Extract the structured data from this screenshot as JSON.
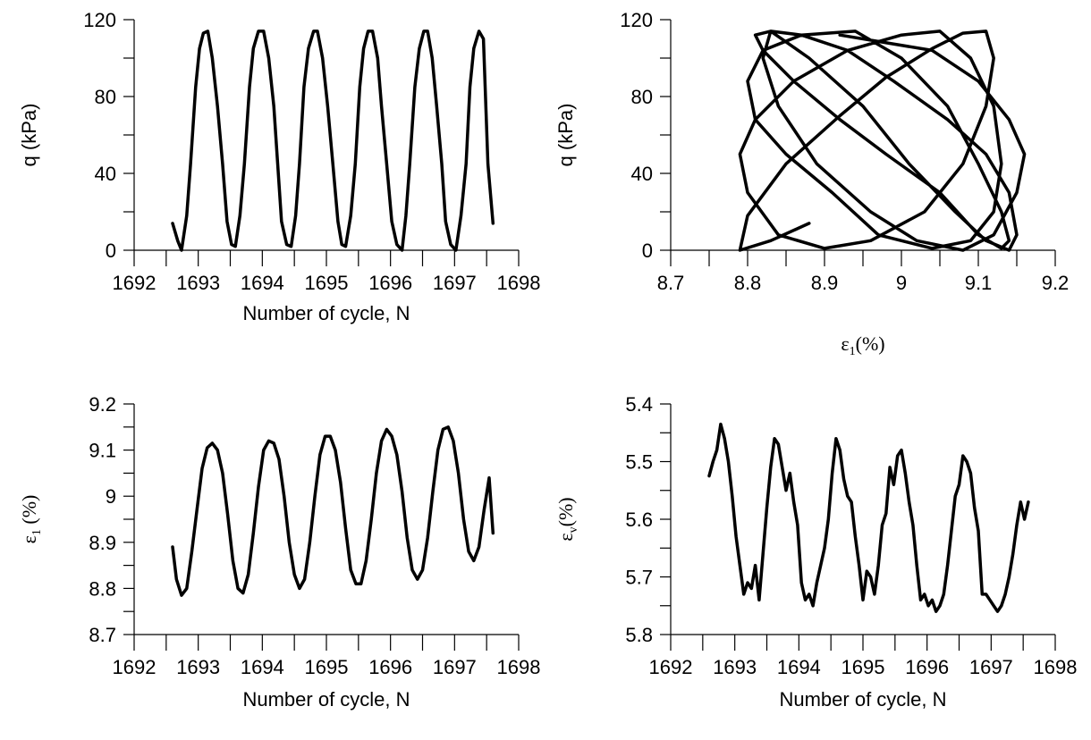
{
  "chart_data": [
    {
      "type": "line",
      "xlabel": "Number of cycle, N",
      "ylabel": "q (kPa)",
      "xlim": [
        1692,
        1698
      ],
      "ylim": [
        0,
        120
      ],
      "xticks": [
        "1692",
        "1693",
        "1694",
        "1695",
        "1696",
        "1697",
        "1698"
      ],
      "yticks": [
        "0",
        "40",
        "80",
        "120"
      ],
      "y_inverted": false,
      "series": [
        {
          "x": [
            1692.6,
            1692.68,
            1692.74,
            1692.82,
            1692.88,
            1692.96,
            1693.02,
            1693.08,
            1693.15,
            1693.22,
            1693.3,
            1693.38,
            1693.45,
            1693.52,
            1693.58,
            1693.65,
            1693.72,
            1693.8,
            1693.86,
            1693.94,
            1694.02,
            1694.1,
            1694.18,
            1694.24,
            1694.3,
            1694.38,
            1694.45,
            1694.52,
            1694.58,
            1694.65,
            1694.72,
            1694.8,
            1694.86,
            1694.94,
            1695.02,
            1695.1,
            1695.18,
            1695.24,
            1695.3,
            1695.38,
            1695.45,
            1695.52,
            1695.58,
            1695.65,
            1695.72,
            1695.8,
            1695.86,
            1695.94,
            1696.02,
            1696.1,
            1696.18,
            1696.24,
            1696.3,
            1696.38,
            1696.45,
            1696.52,
            1696.58,
            1696.65,
            1696.72,
            1696.8,
            1696.86,
            1696.94,
            1697.02,
            1697.1,
            1697.18,
            1697.24,
            1697.3,
            1697.38,
            1697.45,
            1697.52,
            1697.6
          ],
          "y": [
            14,
            5,
            0,
            18,
            45,
            85,
            105,
            113,
            114,
            100,
            75,
            45,
            15,
            3,
            2,
            18,
            45,
            85,
            105,
            114,
            114,
            100,
            75,
            45,
            15,
            3,
            2,
            18,
            45,
            85,
            105,
            114,
            114,
            100,
            75,
            45,
            15,
            3,
            2,
            18,
            45,
            85,
            105,
            114,
            114,
            100,
            75,
            45,
            15,
            3,
            0,
            18,
            45,
            85,
            105,
            114,
            114,
            100,
            75,
            45,
            15,
            3,
            0,
            18,
            45,
            85,
            105,
            114,
            110,
            45,
            14
          ]
        }
      ]
    },
    {
      "type": "line",
      "xlabel": "ε1(%)",
      "ylabel": "q (kPa)",
      "xlim": [
        8.7,
        9.2
      ],
      "ylim": [
        0,
        120
      ],
      "xticks": [
        "8.7",
        "8.8",
        "8.9",
        "9",
        "9.1",
        "9.2"
      ],
      "yticks": [
        "0",
        "40",
        "80",
        "120"
      ],
      "y_inverted": false,
      "series": [
        {
          "x": [
            8.88,
            8.83,
            8.79,
            8.8,
            8.85,
            8.92,
            8.98,
            9.04,
            9.08,
            9.11,
            9.12,
            9.11,
            9.08,
            9.03,
            8.96,
            8.9,
            8.84,
            8.8,
            8.79,
            8.81,
            8.86,
            8.93,
            9.0,
            9.05,
            9.09,
            9.12,
            9.13,
            9.12,
            9.09,
            9.04,
            8.97,
            8.91,
            8.85,
            8.81,
            8.8,
            8.82,
            8.87,
            8.94,
            9.0,
            9.06,
            9.1,
            9.13,
            9.14,
            9.13,
            9.1,
            9.05,
            8.98,
            8.92,
            8.86,
            8.82,
            8.81,
            8.83,
            8.88,
            8.95,
            9.01,
            9.07,
            9.11,
            9.14,
            9.15,
            9.14,
            9.11,
            9.06,
            8.99,
            8.93,
            8.87,
            8.83,
            8.82,
            8.84,
            8.89,
            8.96,
            9.02,
            9.08,
            9.12,
            9.15,
            9.16,
            9.14,
            9.1,
            9.04,
            8.92
          ],
          "y": [
            14,
            5,
            0,
            18,
            45,
            70,
            90,
            105,
            113,
            114,
            100,
            75,
            45,
            20,
            5,
            1,
            8,
            30,
            50,
            68,
            88,
            104,
            112,
            114,
            100,
            75,
            45,
            20,
            5,
            1,
            8,
            30,
            50,
            68,
            88,
            104,
            112,
            114,
            100,
            75,
            45,
            20,
            5,
            1,
            8,
            30,
            50,
            68,
            88,
            104,
            112,
            114,
            100,
            75,
            45,
            20,
            5,
            0,
            8,
            30,
            50,
            68,
            88,
            104,
            112,
            114,
            100,
            75,
            45,
            20,
            5,
            0,
            8,
            30,
            50,
            68,
            88,
            104,
            112
          ]
        }
      ]
    },
    {
      "type": "line",
      "xlabel": "Number of cycle, N",
      "ylabel": "ε1 (%)",
      "xlim": [
        1692,
        1698
      ],
      "ylim": [
        8.7,
        9.2
      ],
      "xticks": [
        "1692",
        "1693",
        "1694",
        "1695",
        "1696",
        "1697",
        "1698"
      ],
      "yticks": [
        "8.7",
        "8.8",
        "8.9",
        "9",
        "9.1",
        "9.2"
      ],
      "y_inverted": false,
      "series": [
        {
          "x": [
            1692.6,
            1692.66,
            1692.74,
            1692.82,
            1692.9,
            1692.98,
            1693.06,
            1693.14,
            1693.22,
            1693.3,
            1693.38,
            1693.46,
            1693.54,
            1693.62,
            1693.7,
            1693.78,
            1693.86,
            1693.94,
            1694.02,
            1694.1,
            1694.18,
            1694.26,
            1694.34,
            1694.42,
            1694.5,
            1694.58,
            1694.66,
            1694.74,
            1694.82,
            1694.9,
            1694.98,
            1695.06,
            1695.14,
            1695.22,
            1695.3,
            1695.38,
            1695.46,
            1695.54,
            1695.62,
            1695.7,
            1695.78,
            1695.86,
            1695.94,
            1696.02,
            1696.1,
            1696.18,
            1696.26,
            1696.34,
            1696.42,
            1696.5,
            1696.58,
            1696.66,
            1696.74,
            1696.82,
            1696.9,
            1696.98,
            1697.06,
            1697.14,
            1697.22,
            1697.3,
            1697.38,
            1697.46,
            1697.54,
            1697.6
          ],
          "y": [
            8.89,
            8.82,
            8.785,
            8.8,
            8.88,
            8.97,
            9.06,
            9.105,
            9.115,
            9.1,
            9.05,
            8.96,
            8.86,
            8.8,
            8.79,
            8.83,
            8.92,
            9.02,
            9.1,
            9.12,
            9.115,
            9.08,
            9.0,
            8.9,
            8.83,
            8.8,
            8.82,
            8.9,
            9.0,
            9.09,
            9.13,
            9.13,
            9.1,
            9.03,
            8.93,
            8.84,
            8.81,
            8.81,
            8.86,
            8.95,
            9.05,
            9.12,
            9.145,
            9.13,
            9.09,
            9.01,
            8.91,
            8.84,
            8.82,
            8.84,
            8.91,
            9.01,
            9.1,
            9.145,
            9.15,
            9.12,
            9.05,
            8.95,
            8.88,
            8.86,
            8.89,
            8.97,
            9.04,
            8.92
          ]
        }
      ]
    },
    {
      "type": "line",
      "xlabel": "Number of cycle, N",
      "ylabel": "εv(%)",
      "xlim": [
        1692,
        1698
      ],
      "ylim": [
        5.8,
        5.4
      ],
      "xticks": [
        "1692",
        "1693",
        "1694",
        "1695",
        "1696",
        "1697",
        "1698"
      ],
      "yticks": [
        "5.4",
        "5.5",
        "5.6",
        "5.7",
        "5.8"
      ],
      "y_inverted": true,
      "series": [
        {
          "x": [
            1692.6,
            1692.66,
            1692.72,
            1692.78,
            1692.84,
            1692.9,
            1692.96,
            1693.02,
            1693.08,
            1693.14,
            1693.2,
            1693.26,
            1693.32,
            1693.38,
            1693.44,
            1693.5,
            1693.56,
            1693.62,
            1693.68,
            1693.74,
            1693.8,
            1693.86,
            1693.92,
            1693.98,
            1694.04,
            1694.1,
            1694.16,
            1694.22,
            1694.28,
            1694.34,
            1694.4,
            1694.46,
            1694.52,
            1694.58,
            1694.64,
            1694.7,
            1694.76,
            1694.82,
            1694.88,
            1694.94,
            1695.0,
            1695.06,
            1695.12,
            1695.18,
            1695.24,
            1695.3,
            1695.36,
            1695.42,
            1695.48,
            1695.54,
            1695.6,
            1695.66,
            1695.72,
            1695.78,
            1695.84,
            1695.9,
            1695.96,
            1696.02,
            1696.08,
            1696.14,
            1696.2,
            1696.26,
            1696.32,
            1696.38,
            1696.44,
            1696.5,
            1696.56,
            1696.62,
            1696.68,
            1696.74,
            1696.8,
            1696.86,
            1696.92,
            1696.98,
            1697.04,
            1697.1,
            1697.16,
            1697.22,
            1697.28,
            1697.34,
            1697.4,
            1697.46,
            1697.52,
            1697.58
          ],
          "y": [
            5.525,
            5.5,
            5.48,
            5.435,
            5.46,
            5.5,
            5.56,
            5.63,
            5.68,
            5.73,
            5.71,
            5.72,
            5.68,
            5.74,
            5.66,
            5.58,
            5.51,
            5.46,
            5.47,
            5.51,
            5.55,
            5.52,
            5.57,
            5.61,
            5.71,
            5.74,
            5.73,
            5.75,
            5.71,
            5.68,
            5.65,
            5.6,
            5.52,
            5.46,
            5.48,
            5.53,
            5.56,
            5.57,
            5.63,
            5.68,
            5.74,
            5.69,
            5.7,
            5.73,
            5.68,
            5.61,
            5.59,
            5.51,
            5.54,
            5.49,
            5.48,
            5.52,
            5.57,
            5.61,
            5.68,
            5.74,
            5.73,
            5.75,
            5.74,
            5.76,
            5.75,
            5.73,
            5.68,
            5.62,
            5.56,
            5.54,
            5.49,
            5.5,
            5.52,
            5.58,
            5.62,
            5.73,
            5.73,
            5.74,
            5.75,
            5.76,
            5.75,
            5.73,
            5.7,
            5.66,
            5.61,
            5.57,
            5.6,
            5.57
          ]
        }
      ]
    }
  ]
}
